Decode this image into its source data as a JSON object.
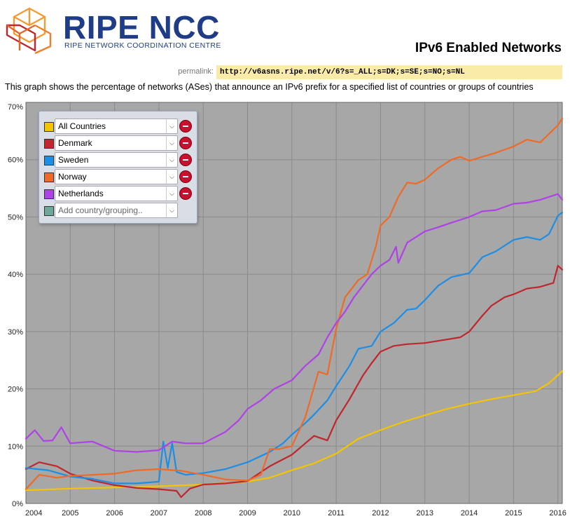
{
  "header": {
    "logo_name": "RIPE NCC",
    "logo_subtitle": "RIPE NETWORK COORDINATION CENTRE",
    "page_title": "IPv6 Enabled Networks"
  },
  "permalink": {
    "label": "permalink:",
    "url": "http://v6asns.ripe.net/v/6?s=_ALL;s=DK;s=SE;s=NO;s=NL"
  },
  "description": "This graph shows the percentage of networks (ASes) that announce an IPv6 prefix for a specified list of countries or groups of countries",
  "legend": {
    "items": [
      {
        "label": "All Countries",
        "color": "#f5c400"
      },
      {
        "label": "Denmark",
        "color": "#c0262d"
      },
      {
        "label": "Sweden",
        "color": "#1c8ee6"
      },
      {
        "label": "Norway",
        "color": "#ef6a26"
      },
      {
        "label": "Netherlands",
        "color": "#b041e6"
      }
    ],
    "add_placeholder": "Add country/grouping..",
    "add_color": "#6fa79b"
  },
  "chart_data": {
    "type": "line",
    "xlim": [
      2004.0,
      2016.1
    ],
    "ylim": [
      0,
      70
    ],
    "yticks": [
      "0%",
      "10%",
      "20%",
      "30%",
      "40%",
      "50%",
      "60%",
      "70%"
    ],
    "xticks": [
      "2004",
      "2005",
      "2006",
      "2007",
      "2008",
      "2009",
      "2010",
      "2011",
      "2012",
      "2013",
      "2014",
      "2015",
      "2016"
    ],
    "grid": true,
    "background": "#a7a7a7",
    "series": [
      {
        "name": "All Countries",
        "color": "#f5c400",
        "points": [
          [
            2004,
            2.3
          ],
          [
            2005,
            2.6
          ],
          [
            2006,
            2.8
          ],
          [
            2007,
            3.0
          ],
          [
            2008,
            3.3
          ],
          [
            2009,
            3.8
          ],
          [
            2009.5,
            4.5
          ],
          [
            2010,
            5.8
          ],
          [
            2010.5,
            7.0
          ],
          [
            2011,
            8.7
          ],
          [
            2011.5,
            11.3
          ],
          [
            2012,
            12.8
          ],
          [
            2012.5,
            14.2
          ],
          [
            2013,
            15.4
          ],
          [
            2013.5,
            16.5
          ],
          [
            2014,
            17.4
          ],
          [
            2014.5,
            18.2
          ],
          [
            2015,
            18.9
          ],
          [
            2015.5,
            19.6
          ],
          [
            2015.8,
            21.0
          ],
          [
            2016.1,
            23.1
          ]
        ]
      },
      {
        "name": "Denmark",
        "color": "#c0262d",
        "points": [
          [
            2004,
            6.0
          ],
          [
            2004.3,
            7.2
          ],
          [
            2004.7,
            6.5
          ],
          [
            2005,
            5.2
          ],
          [
            2005.5,
            4.0
          ],
          [
            2006,
            3.2
          ],
          [
            2006.5,
            2.7
          ],
          [
            2007,
            2.5
          ],
          [
            2007.4,
            2.2
          ],
          [
            2007.5,
            1.1
          ],
          [
            2007.7,
            2.6
          ],
          [
            2008,
            3.3
          ],
          [
            2008.5,
            3.5
          ],
          [
            2009,
            3.9
          ],
          [
            2009.5,
            6.5
          ],
          [
            2010,
            8.5
          ],
          [
            2010.5,
            11.8
          ],
          [
            2010.8,
            11.0
          ],
          [
            2011,
            14.5
          ],
          [
            2011.3,
            18.2
          ],
          [
            2011.6,
            22.3
          ],
          [
            2011.8,
            24.5
          ],
          [
            2012,
            26.5
          ],
          [
            2012.3,
            27.5
          ],
          [
            2012.6,
            27.8
          ],
          [
            2013,
            28.0
          ],
          [
            2013.4,
            28.5
          ],
          [
            2013.8,
            29.0
          ],
          [
            2014,
            30.0
          ],
          [
            2014.3,
            32.8
          ],
          [
            2014.5,
            34.5
          ],
          [
            2014.8,
            36.0
          ],
          [
            2015,
            36.5
          ],
          [
            2015.3,
            37.5
          ],
          [
            2015.6,
            37.8
          ],
          [
            2015.9,
            38.5
          ],
          [
            2016,
            41.5
          ],
          [
            2016.1,
            40.8
          ]
        ]
      },
      {
        "name": "Sweden",
        "color": "#1c8ee6",
        "points": [
          [
            2004,
            6.2
          ],
          [
            2004.5,
            5.8
          ],
          [
            2005,
            4.7
          ],
          [
            2005.5,
            4.3
          ],
          [
            2006,
            3.5
          ],
          [
            2006.5,
            3.5
          ],
          [
            2007,
            3.8
          ],
          [
            2007.1,
            10.8
          ],
          [
            2007.2,
            6.2
          ],
          [
            2007.3,
            10.5
          ],
          [
            2007.4,
            5.5
          ],
          [
            2007.6,
            5.0
          ],
          [
            2008,
            5.3
          ],
          [
            2008.5,
            6.0
          ],
          [
            2009,
            7.2
          ],
          [
            2009.5,
            9.0
          ],
          [
            2009.8,
            10.5
          ],
          [
            2010,
            12.0
          ],
          [
            2010.3,
            14.0
          ],
          [
            2010.5,
            15.5
          ],
          [
            2010.8,
            18.0
          ],
          [
            2011,
            20.5
          ],
          [
            2011.3,
            24.0
          ],
          [
            2011.5,
            27.0
          ],
          [
            2011.8,
            27.5
          ],
          [
            2012,
            30.0
          ],
          [
            2012.3,
            31.5
          ],
          [
            2012.6,
            33.8
          ],
          [
            2012.8,
            34.0
          ],
          [
            2013,
            35.5
          ],
          [
            2013.3,
            38.0
          ],
          [
            2013.6,
            39.5
          ],
          [
            2014,
            40.2
          ],
          [
            2014.3,
            43.0
          ],
          [
            2014.6,
            44.0
          ],
          [
            2015,
            46.0
          ],
          [
            2015.3,
            46.5
          ],
          [
            2015.6,
            46.0
          ],
          [
            2015.8,
            47.0
          ],
          [
            2016,
            50.2
          ],
          [
            2016.1,
            50.8
          ]
        ]
      },
      {
        "name": "Norway",
        "color": "#ef6a26",
        "points": [
          [
            2004,
            2.5
          ],
          [
            2004.3,
            5.0
          ],
          [
            2004.7,
            4.5
          ],
          [
            2005,
            4.8
          ],
          [
            2005.5,
            5.0
          ],
          [
            2006,
            5.2
          ],
          [
            2006.5,
            5.8
          ],
          [
            2007,
            6.0
          ],
          [
            2007.5,
            5.7
          ],
          [
            2008,
            5.0
          ],
          [
            2008.5,
            4.2
          ],
          [
            2009,
            4.0
          ],
          [
            2009.3,
            5.0
          ],
          [
            2009.5,
            9.5
          ],
          [
            2009.7,
            9.5
          ],
          [
            2010,
            10.0
          ],
          [
            2010.3,
            15.0
          ],
          [
            2010.6,
            23.0
          ],
          [
            2010.8,
            22.5
          ],
          [
            2011,
            30.5
          ],
          [
            2011.2,
            36.0
          ],
          [
            2011.5,
            39.0
          ],
          [
            2011.7,
            40.0
          ],
          [
            2011.9,
            45.0
          ],
          [
            2012,
            48.5
          ],
          [
            2012.2,
            50.0
          ],
          [
            2012.4,
            53.5
          ],
          [
            2012.6,
            56.0
          ],
          [
            2012.8,
            55.8
          ],
          [
            2013,
            56.5
          ],
          [
            2013.3,
            58.5
          ],
          [
            2013.6,
            60.0
          ],
          [
            2013.8,
            60.5
          ],
          [
            2014,
            59.8
          ],
          [
            2014.3,
            60.5
          ],
          [
            2014.6,
            61.2
          ],
          [
            2015,
            62.3
          ],
          [
            2015.3,
            63.5
          ],
          [
            2015.6,
            63.0
          ],
          [
            2015.8,
            64.5
          ],
          [
            2016,
            66.0
          ],
          [
            2016.1,
            67.2
          ]
        ]
      },
      {
        "name": "Netherlands",
        "color": "#b041e6",
        "points": [
          [
            2004,
            11.3
          ],
          [
            2004.2,
            12.8
          ],
          [
            2004.4,
            10.9
          ],
          [
            2004.6,
            11.0
          ],
          [
            2004.8,
            13.3
          ],
          [
            2005,
            10.5
          ],
          [
            2005.5,
            10.8
          ],
          [
            2006,
            9.2
          ],
          [
            2006.5,
            9.0
          ],
          [
            2007,
            9.3
          ],
          [
            2007.3,
            10.8
          ],
          [
            2007.6,
            10.5
          ],
          [
            2008,
            10.5
          ],
          [
            2008.5,
            12.5
          ],
          [
            2008.8,
            14.5
          ],
          [
            2009,
            16.5
          ],
          [
            2009.3,
            18.0
          ],
          [
            2009.6,
            20.0
          ],
          [
            2010,
            21.5
          ],
          [
            2010.3,
            24.0
          ],
          [
            2010.6,
            26.0
          ],
          [
            2010.8,
            29.0
          ],
          [
            2011,
            31.5
          ],
          [
            2011.2,
            33.5
          ],
          [
            2011.4,
            36.0
          ],
          [
            2011.6,
            38.0
          ],
          [
            2011.8,
            40.0
          ],
          [
            2012,
            41.5
          ],
          [
            2012.2,
            42.5
          ],
          [
            2012.35,
            44.8
          ],
          [
            2012.4,
            42.0
          ],
          [
            2012.6,
            45.5
          ],
          [
            2012.8,
            46.5
          ],
          [
            2013,
            47.5
          ],
          [
            2013.3,
            48.2
          ],
          [
            2013.6,
            49.0
          ],
          [
            2013.8,
            49.5
          ],
          [
            2014,
            50.0
          ],
          [
            2014.3,
            51.0
          ],
          [
            2014.6,
            51.2
          ],
          [
            2015,
            52.3
          ],
          [
            2015.3,
            52.5
          ],
          [
            2015.6,
            53.0
          ],
          [
            2015.8,
            53.5
          ],
          [
            2016,
            54.0
          ],
          [
            2016.1,
            53.0
          ]
        ]
      }
    ]
  }
}
